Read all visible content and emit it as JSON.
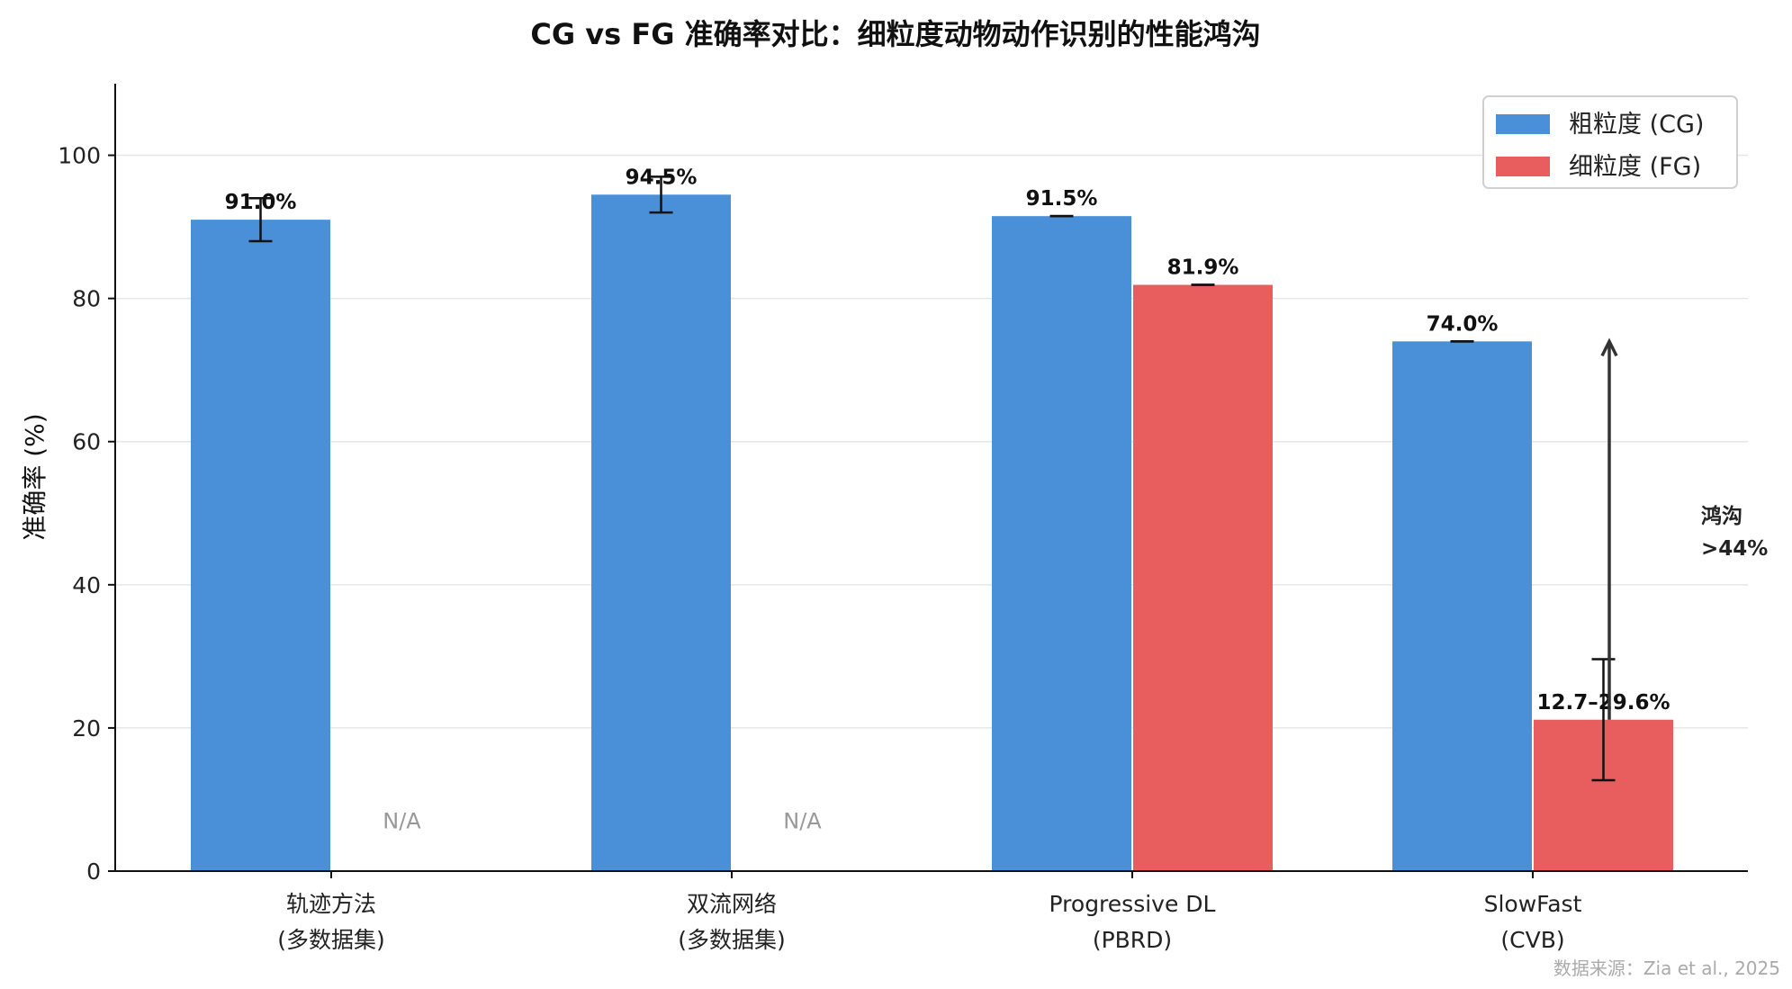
{
  "chart_data": {
    "type": "bar",
    "title": "CG vs FG 准确率对比：细粒度动物动作识别的性能鸿沟",
    "ylabel": "准确率 (%)",
    "xlabel": "",
    "ylim": [
      0,
      110
    ],
    "yticks": [
      0,
      20,
      40,
      60,
      80,
      100
    ],
    "grid": true,
    "legend_position": "top-right",
    "categories": [
      {
        "line1": "轨迹方法",
        "line2": "(多数据集)"
      },
      {
        "line1": "双流网络",
        "line2": "(多数据集)"
      },
      {
        "line1": "Progressive DL",
        "line2": "(PBRD)"
      },
      {
        "line1": "SlowFast",
        "line2": "(CVB)"
      }
    ],
    "series": [
      {
        "name": "粗粒度 (CG)",
        "color": "#4a90d9",
        "values": [
          91.0,
          94.5,
          91.5,
          74.0
        ],
        "err_low": [
          88.0,
          92.0,
          91.5,
          74.0
        ],
        "err_high": [
          94.0,
          97.0,
          91.5,
          74.0
        ],
        "labels": [
          "91.0%",
          "94.5%",
          "91.5%",
          "74.0%"
        ]
      },
      {
        "name": "细粒度 (FG)",
        "color": "#e85d5d",
        "values": [
          null,
          null,
          81.9,
          21.15
        ],
        "err_low": [
          null,
          null,
          81.9,
          12.7
        ],
        "err_high": [
          null,
          null,
          81.9,
          29.6
        ],
        "labels": [
          "N/A",
          "N/A",
          "81.9%",
          "12.7–29.6%"
        ]
      }
    ],
    "annotation": {
      "text_line1": "鸿沟",
      "text_line2": ">44%",
      "arrow_from": 21.15,
      "arrow_to": 74.0,
      "category_index": 3
    },
    "source_note": "数据来源：Zia et al., 2025"
  }
}
